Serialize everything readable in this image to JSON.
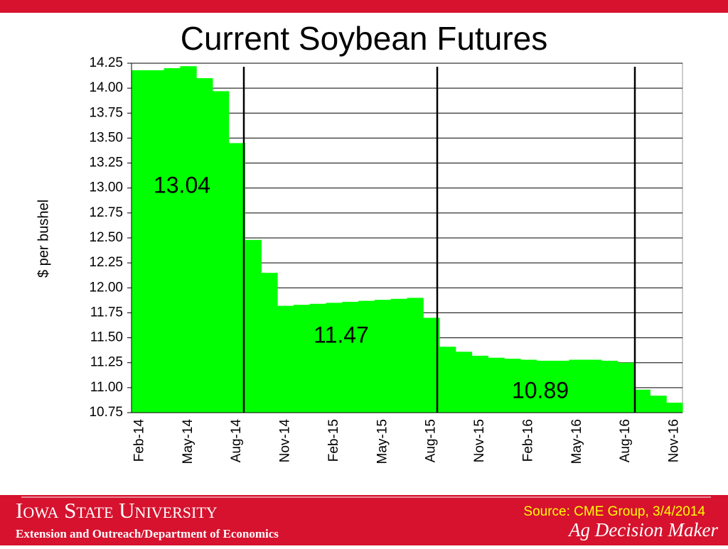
{
  "chart_data": {
    "type": "bar",
    "title": "Current Soybean Futures",
    "y_label": "$ per bushel",
    "categories": [
      "Feb-14",
      null,
      null,
      "May-14",
      null,
      null,
      "Aug-14",
      null,
      null,
      "Nov-14",
      null,
      null,
      "Feb-15",
      null,
      null,
      "May-15",
      null,
      null,
      "Aug-15",
      null,
      null,
      "Nov-15",
      null,
      null,
      "Feb-16",
      null,
      null,
      "May-16",
      null,
      null,
      "Aug-16",
      null,
      null,
      "Nov-16"
    ],
    "values": [
      14.18,
      14.18,
      14.2,
      14.22,
      14.1,
      13.97,
      13.45,
      12.48,
      12.15,
      11.82,
      11.83,
      11.84,
      11.85,
      11.86,
      11.87,
      11.88,
      11.89,
      11.9,
      11.7,
      11.41,
      11.36,
      11.32,
      11.3,
      11.29,
      11.28,
      11.27,
      11.27,
      11.28,
      11.28,
      11.27,
      11.25,
      10.98,
      10.92,
      10.85
    ],
    "color": "#00ff00",
    "ylim": [
      10.75,
      14.25
    ],
    "yticks": [
      10.75,
      {
        "value": 11,
        "label": "11.00"
      },
      11.25,
      {
        "value": 11.5,
        "label": "11.50"
      },
      11.75,
      {
        "value": 12,
        "label": "12.00"
      },
      12.25,
      {
        "value": 12.5,
        "label": "12.50"
      },
      12.75,
      {
        "value": 13,
        "label": "13.00"
      },
      13.25,
      {
        "value": 13.5,
        "label": "13.50"
      },
      13.75,
      {
        "value": 14,
        "label": "14.00"
      },
      14.25
    ],
    "grid": true,
    "annotations": [
      "13.04",
      "11.47",
      "10.89"
    ]
  },
  "footer": {
    "university": "Iowa State University",
    "department": "Extension and Outreach/Department of Economics",
    "source": "Source: CME Group, 3/4/2014",
    "brand": "Ag Decision Maker"
  }
}
